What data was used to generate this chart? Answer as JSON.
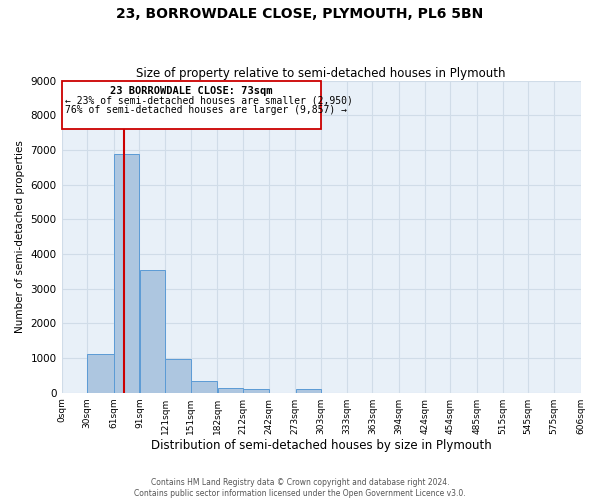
{
  "title": "23, BORROWDALE CLOSE, PLYMOUTH, PL6 5BN",
  "subtitle": "Size of property relative to semi-detached houses in Plymouth",
  "xlabel": "Distribution of semi-detached houses by size in Plymouth",
  "ylabel": "Number of semi-detached properties",
  "bar_left_edges": [
    0,
    30,
    61,
    91,
    121,
    151,
    182,
    212,
    242,
    273,
    303,
    333,
    363,
    394,
    424,
    454,
    485,
    515,
    545,
    575
  ],
  "bar_widths": [
    30,
    31,
    30,
    30,
    30,
    31,
    30,
    30,
    31,
    30,
    30,
    30,
    31,
    30,
    30,
    31,
    30,
    30,
    30,
    31
  ],
  "bar_heights": [
    0,
    1130,
    6880,
    3550,
    970,
    350,
    145,
    100,
    0,
    100,
    0,
    0,
    0,
    0,
    0,
    0,
    0,
    0,
    0,
    0
  ],
  "bar_color": "#adc6e0",
  "bar_edgecolor": "#5b9bd5",
  "property_size": 73,
  "property_line_color": "#cc0000",
  "annotation_box_title": "23 BORROWDALE CLOSE: 73sqm",
  "annotation_line1": "← 23% of semi-detached houses are smaller (2,950)",
  "annotation_line2": "76% of semi-detached houses are larger (9,857) →",
  "annotation_box_edgecolor": "#cc0000",
  "ylim": [
    0,
    9000
  ],
  "yticks": [
    0,
    1000,
    2000,
    3000,
    4000,
    5000,
    6000,
    7000,
    8000,
    9000
  ],
  "xtick_labels": [
    "0sqm",
    "30sqm",
    "61sqm",
    "91sqm",
    "121sqm",
    "151sqm",
    "182sqm",
    "212sqm",
    "242sqm",
    "273sqm",
    "303sqm",
    "333sqm",
    "363sqm",
    "394sqm",
    "424sqm",
    "454sqm",
    "485sqm",
    "515sqm",
    "545sqm",
    "575sqm",
    "606sqm"
  ],
  "grid_color": "#d0dce8",
  "bg_color": "#e8f0f8",
  "footer_line1": "Contains HM Land Registry data © Crown copyright and database right 2024.",
  "footer_line2": "Contains public sector information licensed under the Open Government Licence v3.0."
}
